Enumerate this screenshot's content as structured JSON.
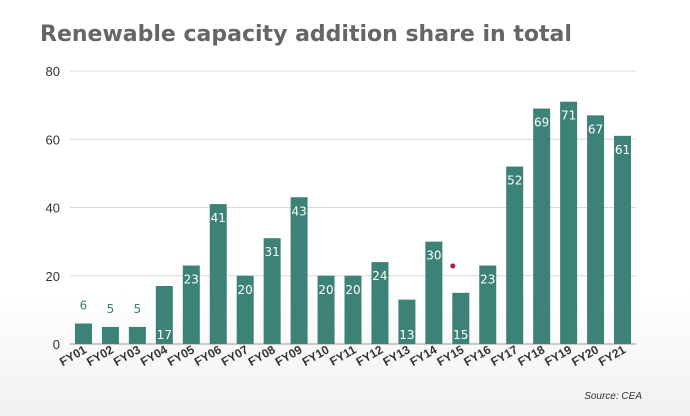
{
  "colors": {
    "bar": "#3d8276",
    "grid": "#d9d9d9",
    "axis_text": "#333333",
    "small_label": "#3d8276",
    "bar_label": "#ffffff",
    "marker": "#b0173c"
  },
  "chart_data": {
    "type": "bar",
    "title": "Renewable capacity addition share in total",
    "xlabel": "",
    "ylabel": "",
    "ylim": [
      0,
      80
    ],
    "yticks": [
      0,
      20,
      40,
      60,
      80
    ],
    "grid": true,
    "categories": [
      "FY01",
      "FY02",
      "FY03",
      "FY04",
      "FY05",
      "FY06",
      "FY07",
      "FY08",
      "FY09",
      "FY10",
      "FY11",
      "FY12",
      "FY13",
      "FY14",
      "FY15",
      "FY16",
      "FY17",
      "FY18",
      "FY19",
      "FY20",
      "FY21"
    ],
    "values": [
      6,
      5,
      5,
      17,
      23,
      41,
      20,
      31,
      43,
      20,
      20,
      24,
      13,
      30,
      15,
      23,
      52,
      69,
      71,
      67,
      61
    ],
    "source": "Source: CEA"
  }
}
